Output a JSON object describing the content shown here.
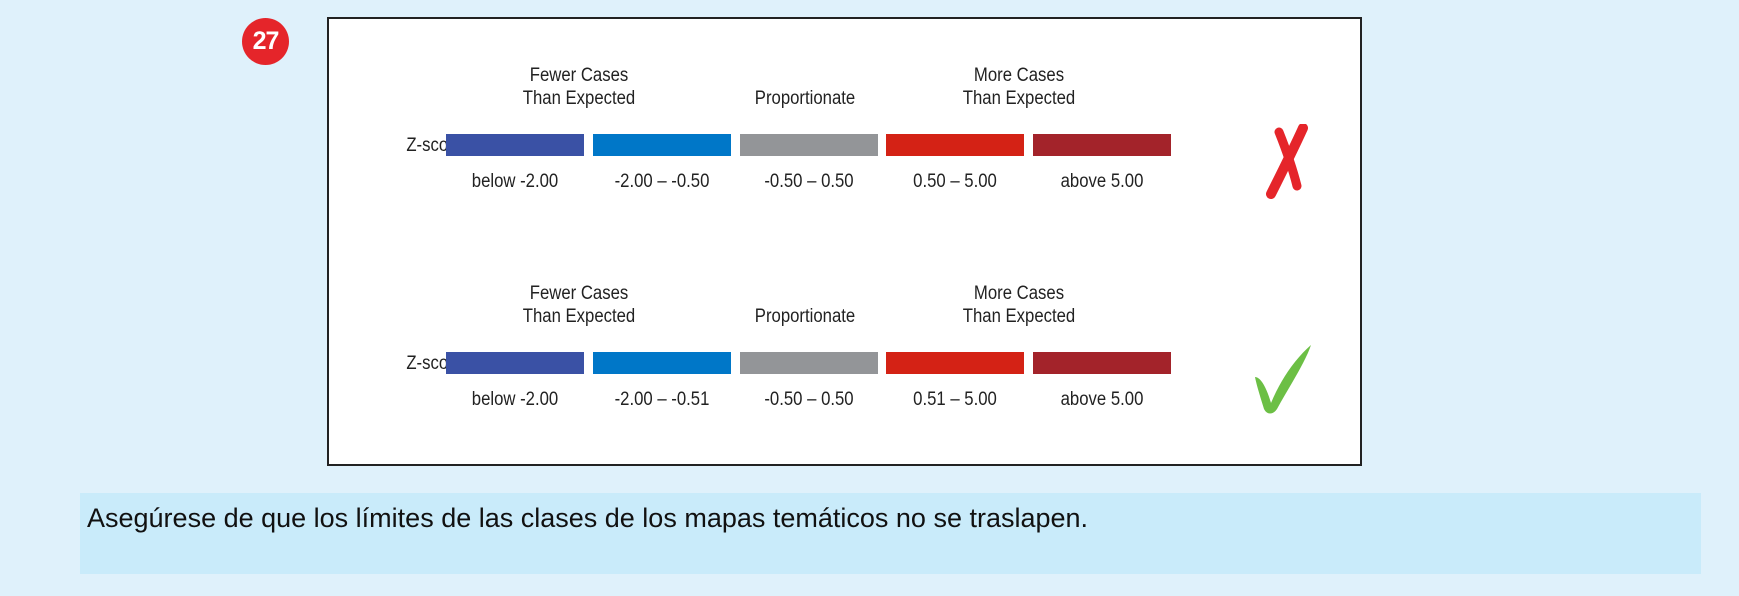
{
  "badge_number": "27",
  "legends": [
    {
      "verdict": "incorrect",
      "verdict_icon": "x-mark-icon",
      "row_label": "Z-score",
      "headings": {
        "fewer_line1": "Fewer Cases",
        "fewer_line2": "Than Expected",
        "proportionate": "Proportionate",
        "more_line1": "More Cases",
        "more_line2": "Than Expected"
      },
      "classes": [
        {
          "color": "#3a51a5",
          "range": "below -2.00"
        },
        {
          "color": "#0077c8",
          "range": "-2.00 – -0.50"
        },
        {
          "color": "#939598",
          "range": "-0.50 – 0.50"
        },
        {
          "color": "#d42215",
          "range": "0.50 – 5.00"
        },
        {
          "color": "#a3232a",
          "range": "above 5.00"
        }
      ]
    },
    {
      "verdict": "correct",
      "verdict_icon": "check-mark-icon",
      "row_label": "Z-score",
      "headings": {
        "fewer_line1": "Fewer Cases",
        "fewer_line2": "Than Expected",
        "proportionate": "Proportionate",
        "more_line1": "More Cases",
        "more_line2": "Than Expected"
      },
      "classes": [
        {
          "color": "#3a51a5",
          "range": "below -2.00"
        },
        {
          "color": "#0077c8",
          "range": "-2.00 – -0.51"
        },
        {
          "color": "#939598",
          "range": "-0.50 – 0.50"
        },
        {
          "color": "#d42215",
          "range": "0.51 – 5.00"
        },
        {
          "color": "#a3232a",
          "range": "above 5.00"
        }
      ]
    }
  ],
  "colors": {
    "incorrect": "#e5252a",
    "correct": "#6cbf45"
  },
  "caption": "Asegúrese de que los límites de las clases de los mapas temáticos no se traslapen."
}
